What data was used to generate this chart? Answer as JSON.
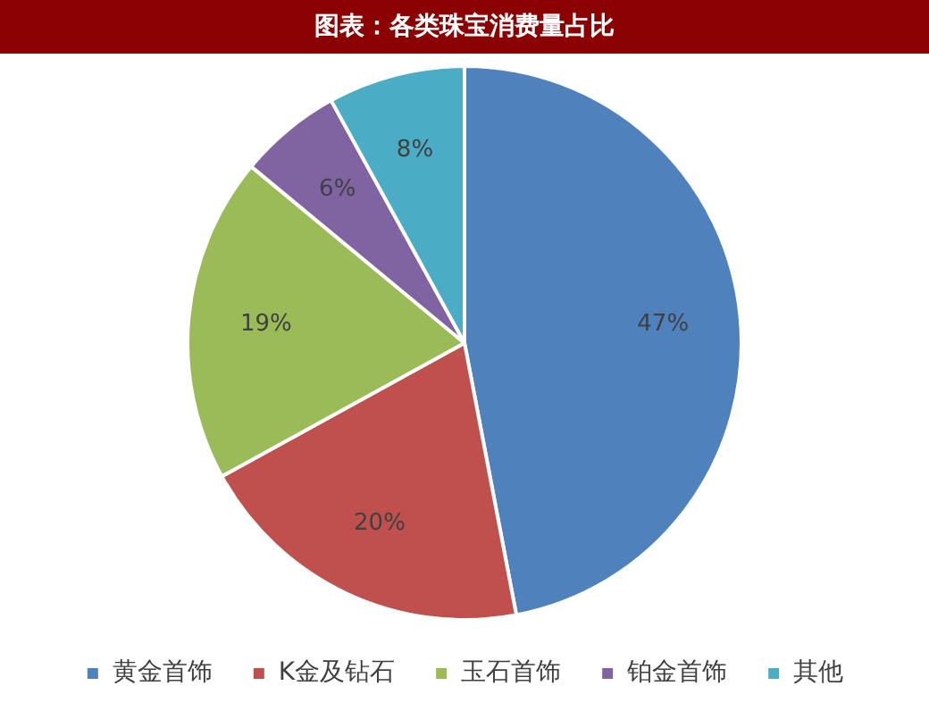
{
  "chart_data": {
    "type": "pie",
    "title": "图表：各类珠宝消费量占比",
    "categories": [
      "黄金首饰",
      "K金及钻石",
      "玉石首饰",
      "铂金首饰",
      "其他"
    ],
    "values": [
      47,
      20,
      19,
      6,
      8
    ],
    "colors": [
      "#4f81bd",
      "#c0504d",
      "#9bbb59",
      "#8064a2",
      "#4bacc6"
    ],
    "value_labels": [
      "47%",
      "20%",
      "19%",
      "6%",
      "8%"
    ],
    "legend": "bottom"
  }
}
